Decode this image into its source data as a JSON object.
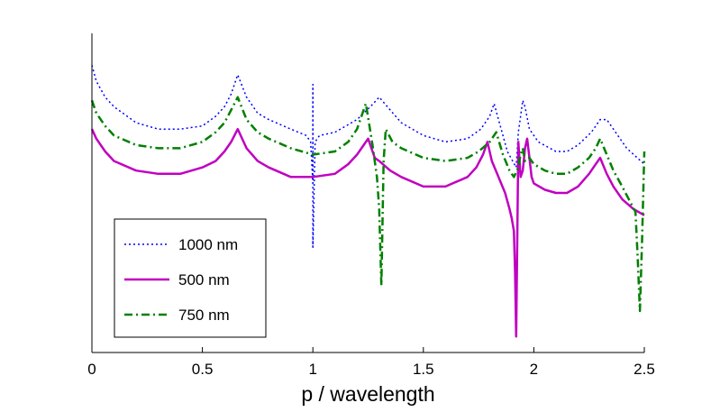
{
  "chart_data": {
    "type": "line",
    "title": "",
    "xlabel": "p / wavelength",
    "ylabel": "",
    "xlim": [
      0,
      2.5
    ],
    "ylim": [
      0,
      1
    ],
    "grid": false,
    "legend_position": "bottom-left",
    "x_ticks": [
      0,
      0.5,
      1,
      1.5,
      2,
      2.5
    ],
    "x_tick_labels": [
      "0",
      "0.5",
      "1",
      "1.5",
      "2",
      "2.5"
    ],
    "y_ticks_visible": false,
    "series": [
      {
        "name": "1000 nm",
        "color": "#0000ff",
        "style": "dotted",
        "x": [
          0,
          0.02,
          0.06,
          0.1,
          0.2,
          0.3,
          0.4,
          0.5,
          0.56,
          0.6,
          0.63,
          0.66,
          0.7,
          0.75,
          0.8,
          0.9,
          0.97,
          0.99,
          1.0,
          1.0,
          1.0,
          1.01,
          1.03,
          1.1,
          1.2,
          1.26,
          1.3,
          1.35,
          1.4,
          1.5,
          1.6,
          1.7,
          1.76,
          1.8,
          1.82,
          1.84,
          1.88,
          1.92,
          1.93,
          1.94,
          1.95,
          1.96,
          1.98,
          2.02,
          2.1,
          2.15,
          2.2,
          2.26,
          2.3,
          2.33,
          2.36,
          2.42,
          2.5
        ],
        "y": [
          0.9,
          0.85,
          0.8,
          0.77,
          0.72,
          0.7,
          0.7,
          0.71,
          0.74,
          0.77,
          0.81,
          0.87,
          0.8,
          0.75,
          0.73,
          0.7,
          0.68,
          0.66,
          0.53,
          0.84,
          0.33,
          0.66,
          0.68,
          0.69,
          0.73,
          0.77,
          0.8,
          0.76,
          0.72,
          0.68,
          0.66,
          0.67,
          0.7,
          0.74,
          0.78,
          0.73,
          0.63,
          0.58,
          0.69,
          0.74,
          0.79,
          0.77,
          0.7,
          0.66,
          0.63,
          0.63,
          0.65,
          0.69,
          0.73,
          0.73,
          0.7,
          0.64,
          0.59
        ]
      },
      {
        "name": "500 nm",
        "color": "#c000c0",
        "style": "solid",
        "x": [
          0,
          0.02,
          0.06,
          0.1,
          0.2,
          0.3,
          0.4,
          0.5,
          0.56,
          0.6,
          0.63,
          0.66,
          0.7,
          0.75,
          0.8,
          0.9,
          1.0,
          1.1,
          1.16,
          1.2,
          1.23,
          1.25,
          1.28,
          1.3,
          1.35,
          1.4,
          1.5,
          1.6,
          1.7,
          1.74,
          1.77,
          1.79,
          1.81,
          1.84,
          1.87,
          1.89,
          1.9,
          1.91,
          1.915,
          1.92,
          1.925,
          1.93,
          1.94,
          1.95,
          1.96,
          1.97,
          1.98,
          1.99,
          2.0,
          2.05,
          2.1,
          2.15,
          2.2,
          2.25,
          2.28,
          2.3,
          2.33,
          2.36,
          2.4,
          2.45,
          2.5
        ],
        "y": [
          0.7,
          0.67,
          0.63,
          0.6,
          0.57,
          0.56,
          0.56,
          0.58,
          0.6,
          0.63,
          0.66,
          0.7,
          0.64,
          0.6,
          0.58,
          0.55,
          0.55,
          0.56,
          0.59,
          0.62,
          0.65,
          0.67,
          0.61,
          0.6,
          0.57,
          0.55,
          0.52,
          0.52,
          0.55,
          0.58,
          0.62,
          0.66,
          0.6,
          0.55,
          0.5,
          0.45,
          0.42,
          0.38,
          0.25,
          0.05,
          0.35,
          0.66,
          0.55,
          0.57,
          0.64,
          0.67,
          0.61,
          0.55,
          0.53,
          0.51,
          0.5,
          0.5,
          0.52,
          0.56,
          0.59,
          0.61,
          0.56,
          0.52,
          0.48,
          0.45,
          0.43
        ]
      },
      {
        "name": "750 nm",
        "color": "#008000",
        "style": "dashdot",
        "x": [
          0,
          0.02,
          0.06,
          0.1,
          0.2,
          0.3,
          0.4,
          0.5,
          0.56,
          0.6,
          0.63,
          0.66,
          0.7,
          0.75,
          0.8,
          0.9,
          1.0,
          1.1,
          1.16,
          1.2,
          1.22,
          1.24,
          1.27,
          1.29,
          1.3,
          1.31,
          1.32,
          1.33,
          1.36,
          1.4,
          1.5,
          1.6,
          1.7,
          1.75,
          1.8,
          1.83,
          1.86,
          1.89,
          1.91,
          1.93,
          1.94,
          1.95,
          1.96,
          1.98,
          2.0,
          2.05,
          2.1,
          2.15,
          2.2,
          2.25,
          2.28,
          2.3,
          2.33,
          2.36,
          2.4,
          2.43,
          2.46,
          2.47,
          2.48,
          2.49,
          2.5
        ],
        "y": [
          0.79,
          0.75,
          0.71,
          0.68,
          0.65,
          0.64,
          0.64,
          0.66,
          0.69,
          0.72,
          0.76,
          0.8,
          0.73,
          0.69,
          0.67,
          0.64,
          0.62,
          0.63,
          0.66,
          0.7,
          0.74,
          0.78,
          0.65,
          0.55,
          0.45,
          0.21,
          0.6,
          0.7,
          0.66,
          0.64,
          0.61,
          0.6,
          0.61,
          0.63,
          0.66,
          0.69,
          0.62,
          0.57,
          0.55,
          0.58,
          0.62,
          0.64,
          0.6,
          0.61,
          0.59,
          0.57,
          0.56,
          0.56,
          0.58,
          0.61,
          0.64,
          0.67,
          0.62,
          0.57,
          0.52,
          0.48,
          0.44,
          0.3,
          0.13,
          0.35,
          0.63
        ]
      }
    ]
  }
}
